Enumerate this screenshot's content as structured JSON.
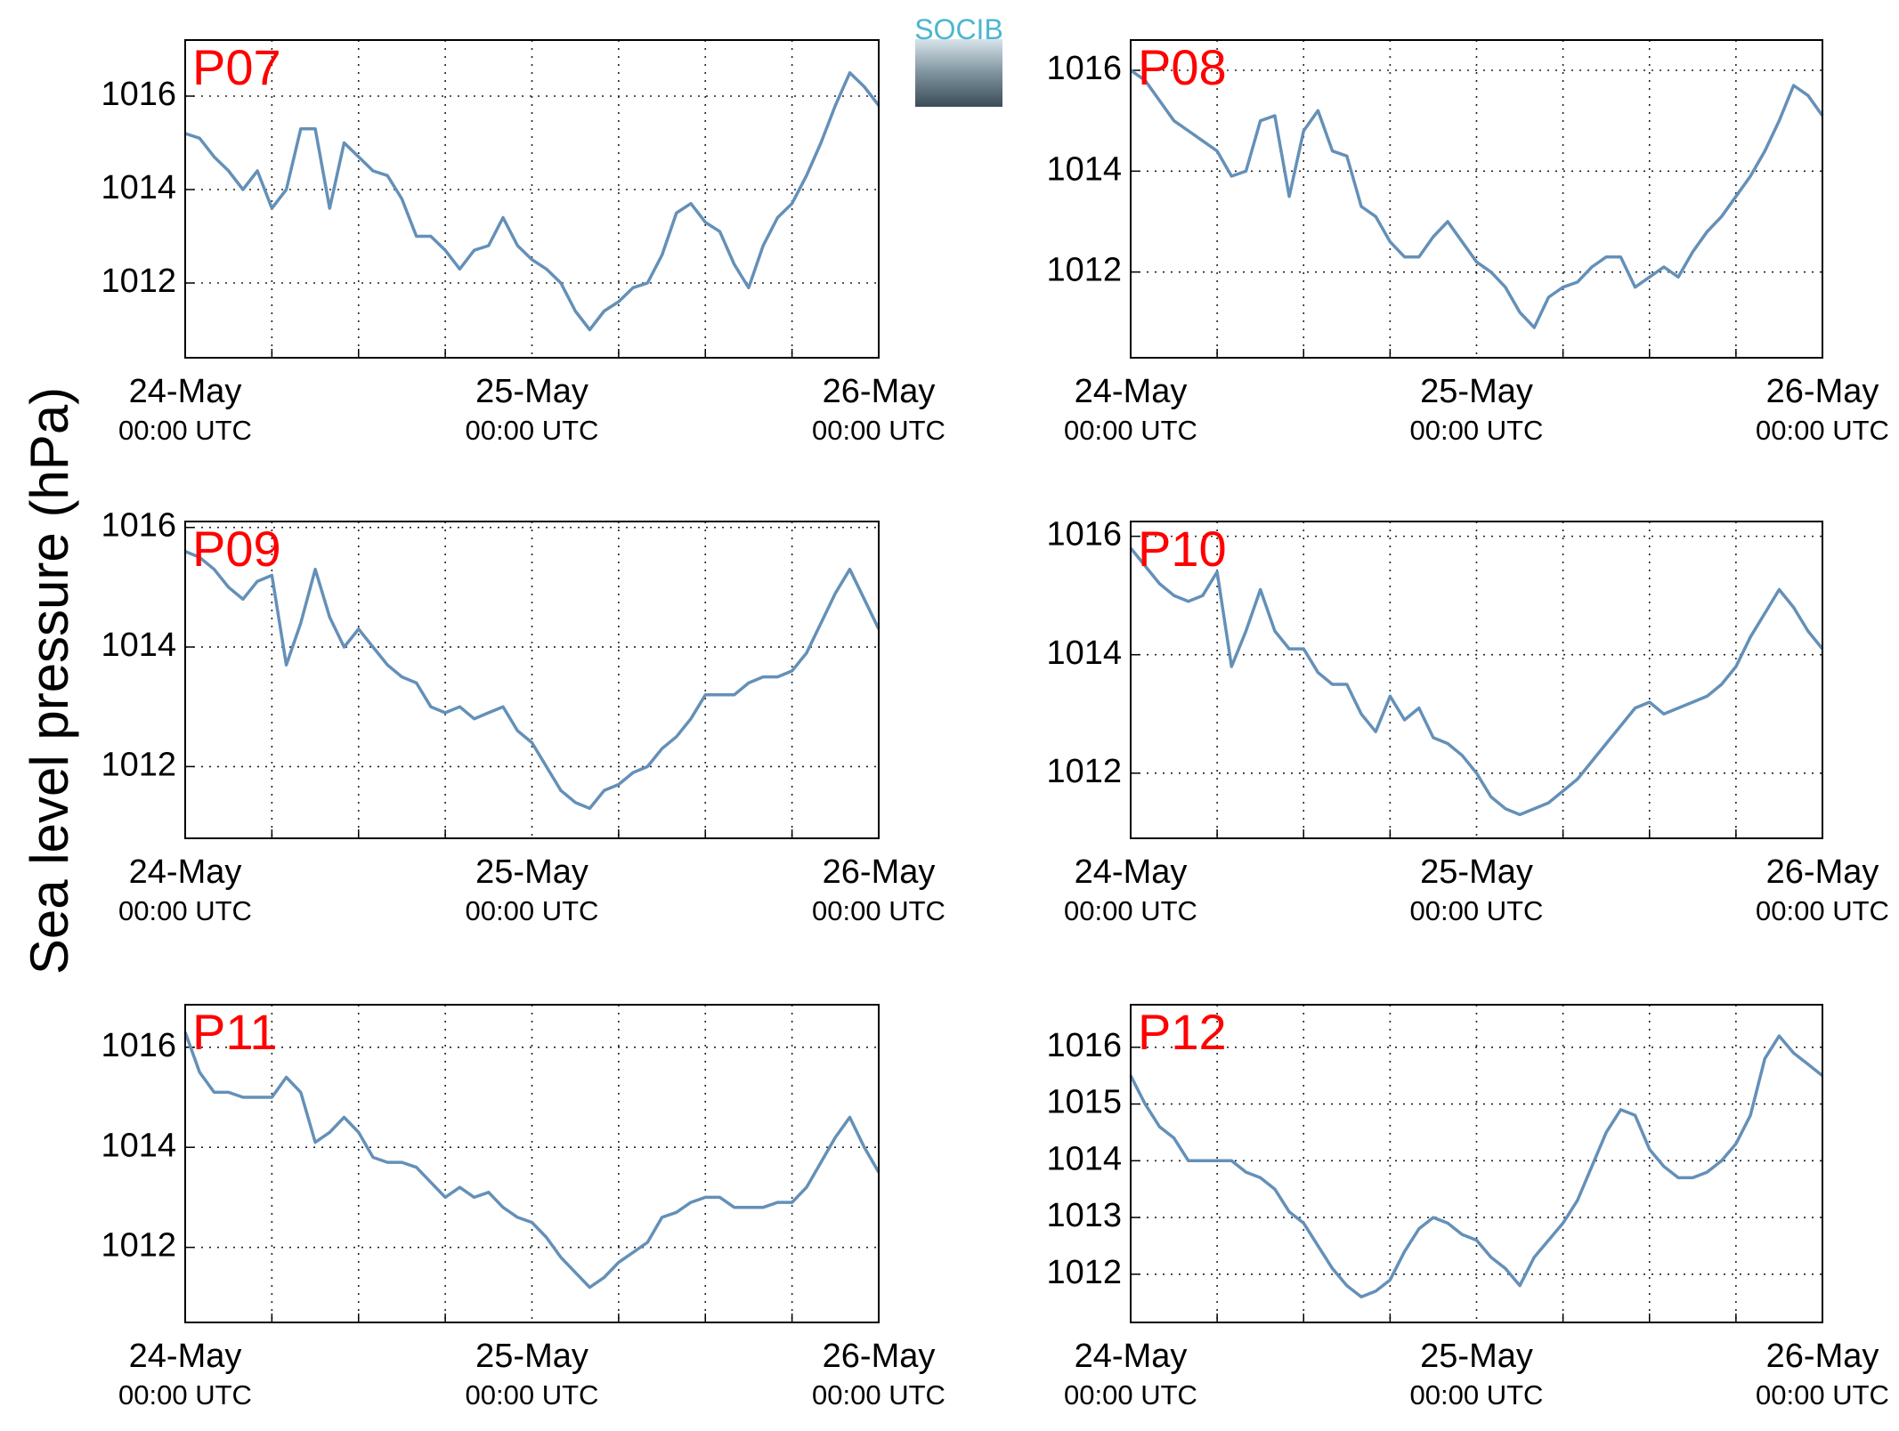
{
  "ylabel": "Sea level pressure (hPa)",
  "logo": "SOCIB",
  "chart_data": [
    {
      "type": "line",
      "title": "P07",
      "color": "#6490b8",
      "grid": true,
      "x": [
        0,
        1,
        2,
        3,
        4,
        5,
        6,
        7,
        8,
        9,
        10,
        11,
        12,
        13,
        14,
        15,
        16,
        17,
        18,
        19,
        20,
        21,
        22,
        23,
        24,
        25,
        26,
        27,
        28,
        29,
        30,
        31,
        32,
        33,
        34,
        35,
        36,
        37,
        38,
        39,
        40,
        41,
        42,
        43,
        44,
        45,
        46,
        47,
        48
      ],
      "values": [
        1015.2,
        1015.1,
        1014.7,
        1014.4,
        1014.0,
        1014.4,
        1013.6,
        1014.0,
        1015.3,
        1015.3,
        1013.6,
        1015.0,
        1014.7,
        1014.4,
        1014.3,
        1013.8,
        1013.0,
        1013.0,
        1012.7,
        1012.3,
        1012.7,
        1012.8,
        1013.4,
        1012.8,
        1012.5,
        1012.3,
        1012.0,
        1011.4,
        1011.0,
        1011.4,
        1011.6,
        1011.9,
        1012.0,
        1012.6,
        1013.5,
        1013.7,
        1013.3,
        1013.1,
        1012.4,
        1011.9,
        1012.8,
        1013.4,
        1013.7,
        1014.3,
        1015.0,
        1015.8,
        1016.5,
        1016.2,
        1015.8
      ],
      "xlim": [
        0,
        48
      ],
      "xticks": [
        {
          "value": 0,
          "label": "24-May",
          "sublabel": "00:00 UTC"
        },
        {
          "value": 24,
          "label": "25-May",
          "sublabel": "00:00 UTC"
        },
        {
          "value": 48,
          "label": "26-May",
          "sublabel": "00:00 UTC"
        }
      ],
      "xgrid": [
        6,
        12,
        18,
        30,
        36,
        42
      ],
      "ylim": [
        1010.4,
        1017.2
      ],
      "yticks": [
        1012,
        1014,
        1016
      ]
    },
    {
      "type": "line",
      "title": "P08",
      "color": "#6490b8",
      "grid": true,
      "x": [
        0,
        1,
        2,
        3,
        4,
        5,
        6,
        7,
        8,
        9,
        10,
        11,
        12,
        13,
        14,
        15,
        16,
        17,
        18,
        19,
        20,
        21,
        22,
        23,
        24,
        25,
        26,
        27,
        28,
        29,
        30,
        31,
        32,
        33,
        34,
        35,
        36,
        37,
        38,
        39,
        40,
        41,
        42,
        43,
        44,
        45,
        46,
        47,
        48
      ],
      "values": [
        1016.0,
        1015.8,
        1015.4,
        1015.0,
        1014.8,
        1014.6,
        1014.4,
        1013.9,
        1014.0,
        1015.0,
        1015.1,
        1013.5,
        1014.8,
        1015.2,
        1014.4,
        1014.3,
        1013.3,
        1013.1,
        1012.6,
        1012.3,
        1012.3,
        1012.7,
        1013.0,
        1012.6,
        1012.2,
        1012.0,
        1011.7,
        1011.2,
        1010.9,
        1011.5,
        1011.7,
        1011.8,
        1012.1,
        1012.3,
        1012.3,
        1011.7,
        1011.9,
        1012.1,
        1011.9,
        1012.4,
        1012.8,
        1013.1,
        1013.5,
        1013.9,
        1014.4,
        1015.0,
        1015.7,
        1015.5,
        1015.1
      ],
      "xlim": [
        0,
        48
      ],
      "xticks": [
        {
          "value": 0,
          "label": "24-May",
          "sublabel": "00:00 UTC"
        },
        {
          "value": 24,
          "label": "25-May",
          "sublabel": "00:00 UTC"
        },
        {
          "value": 48,
          "label": "26-May",
          "sublabel": "00:00 UTC"
        }
      ],
      "xgrid": [
        6,
        12,
        18,
        30,
        36,
        42
      ],
      "ylim": [
        1010.3,
        1016.6
      ],
      "yticks": [
        1012,
        1014,
        1016
      ]
    },
    {
      "type": "line",
      "title": "P09",
      "color": "#6490b8",
      "grid": true,
      "x": [
        0,
        1,
        2,
        3,
        4,
        5,
        6,
        7,
        8,
        9,
        10,
        11,
        12,
        13,
        14,
        15,
        16,
        17,
        18,
        19,
        20,
        21,
        22,
        23,
        24,
        25,
        26,
        27,
        28,
        29,
        30,
        31,
        32,
        33,
        34,
        35,
        36,
        37,
        38,
        39,
        40,
        41,
        42,
        43,
        44,
        45,
        46,
        47,
        48
      ],
      "values": [
        1015.6,
        1015.5,
        1015.3,
        1015.0,
        1014.8,
        1015.1,
        1015.2,
        1013.7,
        1014.4,
        1015.3,
        1014.5,
        1014.0,
        1014.3,
        1014.0,
        1013.7,
        1013.5,
        1013.4,
        1013.0,
        1012.9,
        1013.0,
        1012.8,
        1012.9,
        1013.0,
        1012.6,
        1012.4,
        1012.0,
        1011.6,
        1011.4,
        1011.3,
        1011.6,
        1011.7,
        1011.9,
        1012.0,
        1012.3,
        1012.5,
        1012.8,
        1013.2,
        1013.2,
        1013.2,
        1013.4,
        1013.5,
        1013.5,
        1013.6,
        1013.9,
        1014.4,
        1014.9,
        1015.3,
        1014.8,
        1014.3
      ],
      "xlim": [
        0,
        48
      ],
      "xticks": [
        {
          "value": 0,
          "label": "24-May",
          "sublabel": "00:00 UTC"
        },
        {
          "value": 24,
          "label": "25-May",
          "sublabel": "00:00 UTC"
        },
        {
          "value": 48,
          "label": "26-May",
          "sublabel": "00:00 UTC"
        }
      ],
      "xgrid": [
        6,
        12,
        18,
        30,
        36,
        42
      ],
      "ylim": [
        1010.8,
        1016.1
      ],
      "yticks": [
        1012,
        1014,
        1016
      ]
    },
    {
      "type": "line",
      "title": "P10",
      "color": "#6490b8",
      "grid": true,
      "x": [
        0,
        1,
        2,
        3,
        4,
        5,
        6,
        7,
        8,
        9,
        10,
        11,
        12,
        13,
        14,
        15,
        16,
        17,
        18,
        19,
        20,
        21,
        22,
        23,
        24,
        25,
        26,
        27,
        28,
        29,
        30,
        31,
        32,
        33,
        34,
        35,
        36,
        37,
        38,
        39,
        40,
        41,
        42,
        43,
        44,
        45,
        46,
        47,
        48
      ],
      "values": [
        1015.8,
        1015.5,
        1015.2,
        1015.0,
        1014.9,
        1015.0,
        1015.4,
        1013.8,
        1014.4,
        1015.1,
        1014.4,
        1014.1,
        1014.1,
        1013.7,
        1013.5,
        1013.5,
        1013.0,
        1012.7,
        1013.3,
        1012.9,
        1013.1,
        1012.6,
        1012.5,
        1012.3,
        1012.0,
        1011.6,
        1011.4,
        1011.3,
        1011.4,
        1011.5,
        1011.7,
        1011.9,
        1012.2,
        1012.5,
        1012.8,
        1013.1,
        1013.2,
        1013.0,
        1013.1,
        1013.2,
        1013.3,
        1013.5,
        1013.8,
        1014.3,
        1014.7,
        1015.1,
        1014.8,
        1014.4,
        1014.1
      ],
      "xlim": [
        0,
        48
      ],
      "xticks": [
        {
          "value": 0,
          "label": "24-May",
          "sublabel": "00:00 UTC"
        },
        {
          "value": 24,
          "label": "25-May",
          "sublabel": "00:00 UTC"
        },
        {
          "value": 48,
          "label": "26-May",
          "sublabel": "00:00 UTC"
        }
      ],
      "xgrid": [
        6,
        12,
        18,
        30,
        36,
        42
      ],
      "ylim": [
        1010.9,
        1016.25
      ],
      "yticks": [
        1012,
        1014,
        1016
      ]
    },
    {
      "type": "line",
      "title": "P11",
      "color": "#6490b8",
      "grid": true,
      "x": [
        0,
        1,
        2,
        3,
        4,
        5,
        6,
        7,
        8,
        9,
        10,
        11,
        12,
        13,
        14,
        15,
        16,
        17,
        18,
        19,
        20,
        21,
        22,
        23,
        24,
        25,
        26,
        27,
        28,
        29,
        30,
        31,
        32,
        33,
        34,
        35,
        36,
        37,
        38,
        39,
        40,
        41,
        42,
        43,
        44,
        45,
        46,
        47,
        48
      ],
      "values": [
        1016.3,
        1015.5,
        1015.1,
        1015.1,
        1015.0,
        1015.0,
        1015.0,
        1015.4,
        1015.1,
        1014.1,
        1014.3,
        1014.6,
        1014.3,
        1013.8,
        1013.7,
        1013.7,
        1013.6,
        1013.3,
        1013.0,
        1013.2,
        1013.0,
        1013.1,
        1012.8,
        1012.6,
        1012.5,
        1012.2,
        1011.8,
        1011.5,
        1011.2,
        1011.4,
        1011.7,
        1011.9,
        1012.1,
        1012.6,
        1012.7,
        1012.9,
        1013.0,
        1013.0,
        1012.8,
        1012.8,
        1012.8,
        1012.9,
        1012.9,
        1013.2,
        1013.7,
        1014.2,
        1014.6,
        1014.0,
        1013.5
      ],
      "xlim": [
        0,
        48
      ],
      "xticks": [
        {
          "value": 0,
          "label": "24-May",
          "sublabel": "00:00 UTC"
        },
        {
          "value": 24,
          "label": "25-May",
          "sublabel": "00:00 UTC"
        },
        {
          "value": 48,
          "label": "26-May",
          "sublabel": "00:00 UTC"
        }
      ],
      "xgrid": [
        6,
        12,
        18,
        30,
        36,
        42
      ],
      "ylim": [
        1010.5,
        1016.85
      ],
      "yticks": [
        1012,
        1014,
        1016
      ]
    },
    {
      "type": "line",
      "title": "P12",
      "color": "#6490b8",
      "grid": true,
      "x": [
        0,
        1,
        2,
        3,
        4,
        5,
        6,
        7,
        8,
        9,
        10,
        11,
        12,
        13,
        14,
        15,
        16,
        17,
        18,
        19,
        20,
        21,
        22,
        23,
        24,
        25,
        26,
        27,
        28,
        29,
        30,
        31,
        32,
        33,
        34,
        35,
        36,
        37,
        38,
        39,
        40,
        41,
        42,
        43,
        44,
        45,
        46,
        47,
        48
      ],
      "values": [
        1015.5,
        1015.0,
        1014.6,
        1014.4,
        1014.0,
        1014.0,
        1014.0,
        1014.0,
        1013.8,
        1013.7,
        1013.5,
        1013.1,
        1012.9,
        1012.5,
        1012.1,
        1011.8,
        1011.6,
        1011.7,
        1011.9,
        1012.4,
        1012.8,
        1013.0,
        1012.9,
        1012.7,
        1012.6,
        1012.3,
        1012.1,
        1011.8,
        1012.3,
        1012.6,
        1012.9,
        1013.3,
        1013.9,
        1014.5,
        1014.9,
        1014.8,
        1014.2,
        1013.9,
        1013.7,
        1013.7,
        1013.8,
        1014.0,
        1014.3,
        1014.8,
        1015.8,
        1016.2,
        1015.9,
        1015.7,
        1015.5
      ],
      "xlim": [
        0,
        48
      ],
      "xticks": [
        {
          "value": 0,
          "label": "24-May",
          "sublabel": "00:00 UTC"
        },
        {
          "value": 24,
          "label": "25-May",
          "sublabel": "00:00 UTC"
        },
        {
          "value": 48,
          "label": "26-May",
          "sublabel": "00:00 UTC"
        }
      ],
      "xgrid": [
        6,
        12,
        18,
        30,
        36,
        42
      ],
      "ylim": [
        1011.15,
        1016.75
      ],
      "yticks": [
        1012,
        1013,
        1014,
        1015,
        1016
      ]
    }
  ]
}
